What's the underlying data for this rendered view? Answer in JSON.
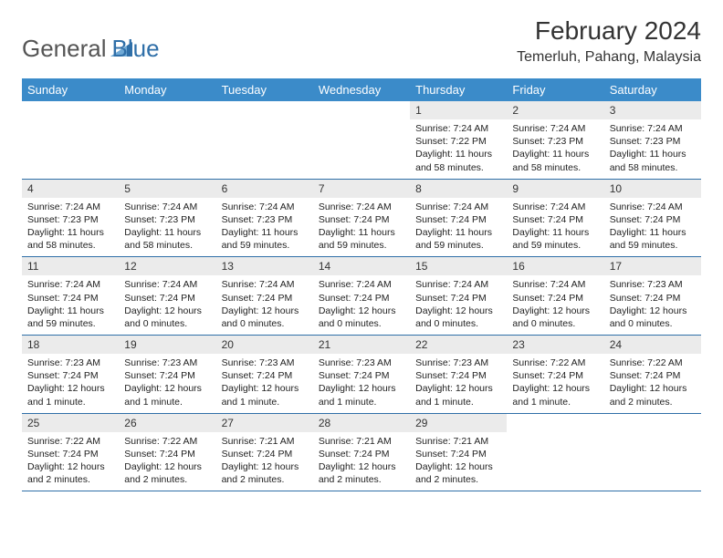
{
  "logo": {
    "text1": "General",
    "text2": "Blue"
  },
  "header": {
    "title": "February 2024",
    "location": "Temerluh, Pahang, Malaysia"
  },
  "colors": {
    "header_bg": "#3b8bc9",
    "header_text": "#ffffff",
    "week_border": "#2f6fa8",
    "daynum_bg": "#ebebeb",
    "logo_gray": "#555555",
    "logo_blue": "#2f6fa8"
  },
  "weekdays": [
    "Sunday",
    "Monday",
    "Tuesday",
    "Wednesday",
    "Thursday",
    "Friday",
    "Saturday"
  ],
  "weeks": [
    [
      {
        "n": "",
        "lines": [
          "",
          "",
          "",
          ""
        ]
      },
      {
        "n": "",
        "lines": [
          "",
          "",
          "",
          ""
        ]
      },
      {
        "n": "",
        "lines": [
          "",
          "",
          "",
          ""
        ]
      },
      {
        "n": "",
        "lines": [
          "",
          "",
          "",
          ""
        ]
      },
      {
        "n": "1",
        "lines": [
          "Sunrise: 7:24 AM",
          "Sunset: 7:22 PM",
          "Daylight: 11 hours",
          "and 58 minutes."
        ]
      },
      {
        "n": "2",
        "lines": [
          "Sunrise: 7:24 AM",
          "Sunset: 7:23 PM",
          "Daylight: 11 hours",
          "and 58 minutes."
        ]
      },
      {
        "n": "3",
        "lines": [
          "Sunrise: 7:24 AM",
          "Sunset: 7:23 PM",
          "Daylight: 11 hours",
          "and 58 minutes."
        ]
      }
    ],
    [
      {
        "n": "4",
        "lines": [
          "Sunrise: 7:24 AM",
          "Sunset: 7:23 PM",
          "Daylight: 11 hours",
          "and 58 minutes."
        ]
      },
      {
        "n": "5",
        "lines": [
          "Sunrise: 7:24 AM",
          "Sunset: 7:23 PM",
          "Daylight: 11 hours",
          "and 58 minutes."
        ]
      },
      {
        "n": "6",
        "lines": [
          "Sunrise: 7:24 AM",
          "Sunset: 7:23 PM",
          "Daylight: 11 hours",
          "and 59 minutes."
        ]
      },
      {
        "n": "7",
        "lines": [
          "Sunrise: 7:24 AM",
          "Sunset: 7:24 PM",
          "Daylight: 11 hours",
          "and 59 minutes."
        ]
      },
      {
        "n": "8",
        "lines": [
          "Sunrise: 7:24 AM",
          "Sunset: 7:24 PM",
          "Daylight: 11 hours",
          "and 59 minutes."
        ]
      },
      {
        "n": "9",
        "lines": [
          "Sunrise: 7:24 AM",
          "Sunset: 7:24 PM",
          "Daylight: 11 hours",
          "and 59 minutes."
        ]
      },
      {
        "n": "10",
        "lines": [
          "Sunrise: 7:24 AM",
          "Sunset: 7:24 PM",
          "Daylight: 11 hours",
          "and 59 minutes."
        ]
      }
    ],
    [
      {
        "n": "11",
        "lines": [
          "Sunrise: 7:24 AM",
          "Sunset: 7:24 PM",
          "Daylight: 11 hours",
          "and 59 minutes."
        ]
      },
      {
        "n": "12",
        "lines": [
          "Sunrise: 7:24 AM",
          "Sunset: 7:24 PM",
          "Daylight: 12 hours",
          "and 0 minutes."
        ]
      },
      {
        "n": "13",
        "lines": [
          "Sunrise: 7:24 AM",
          "Sunset: 7:24 PM",
          "Daylight: 12 hours",
          "and 0 minutes."
        ]
      },
      {
        "n": "14",
        "lines": [
          "Sunrise: 7:24 AM",
          "Sunset: 7:24 PM",
          "Daylight: 12 hours",
          "and 0 minutes."
        ]
      },
      {
        "n": "15",
        "lines": [
          "Sunrise: 7:24 AM",
          "Sunset: 7:24 PM",
          "Daylight: 12 hours",
          "and 0 minutes."
        ]
      },
      {
        "n": "16",
        "lines": [
          "Sunrise: 7:24 AM",
          "Sunset: 7:24 PM",
          "Daylight: 12 hours",
          "and 0 minutes."
        ]
      },
      {
        "n": "17",
        "lines": [
          "Sunrise: 7:23 AM",
          "Sunset: 7:24 PM",
          "Daylight: 12 hours",
          "and 0 minutes."
        ]
      }
    ],
    [
      {
        "n": "18",
        "lines": [
          "Sunrise: 7:23 AM",
          "Sunset: 7:24 PM",
          "Daylight: 12 hours",
          "and 1 minute."
        ]
      },
      {
        "n": "19",
        "lines": [
          "Sunrise: 7:23 AM",
          "Sunset: 7:24 PM",
          "Daylight: 12 hours",
          "and 1 minute."
        ]
      },
      {
        "n": "20",
        "lines": [
          "Sunrise: 7:23 AM",
          "Sunset: 7:24 PM",
          "Daylight: 12 hours",
          "and 1 minute."
        ]
      },
      {
        "n": "21",
        "lines": [
          "Sunrise: 7:23 AM",
          "Sunset: 7:24 PM",
          "Daylight: 12 hours",
          "and 1 minute."
        ]
      },
      {
        "n": "22",
        "lines": [
          "Sunrise: 7:23 AM",
          "Sunset: 7:24 PM",
          "Daylight: 12 hours",
          "and 1 minute."
        ]
      },
      {
        "n": "23",
        "lines": [
          "Sunrise: 7:22 AM",
          "Sunset: 7:24 PM",
          "Daylight: 12 hours",
          "and 1 minute."
        ]
      },
      {
        "n": "24",
        "lines": [
          "Sunrise: 7:22 AM",
          "Sunset: 7:24 PM",
          "Daylight: 12 hours",
          "and 2 minutes."
        ]
      }
    ],
    [
      {
        "n": "25",
        "lines": [
          "Sunrise: 7:22 AM",
          "Sunset: 7:24 PM",
          "Daylight: 12 hours",
          "and 2 minutes."
        ]
      },
      {
        "n": "26",
        "lines": [
          "Sunrise: 7:22 AM",
          "Sunset: 7:24 PM",
          "Daylight: 12 hours",
          "and 2 minutes."
        ]
      },
      {
        "n": "27",
        "lines": [
          "Sunrise: 7:21 AM",
          "Sunset: 7:24 PM",
          "Daylight: 12 hours",
          "and 2 minutes."
        ]
      },
      {
        "n": "28",
        "lines": [
          "Sunrise: 7:21 AM",
          "Sunset: 7:24 PM",
          "Daylight: 12 hours",
          "and 2 minutes."
        ]
      },
      {
        "n": "29",
        "lines": [
          "Sunrise: 7:21 AM",
          "Sunset: 7:24 PM",
          "Daylight: 12 hours",
          "and 2 minutes."
        ]
      },
      {
        "n": "",
        "lines": [
          "",
          "",
          "",
          ""
        ]
      },
      {
        "n": "",
        "lines": [
          "",
          "",
          "",
          ""
        ]
      }
    ]
  ]
}
